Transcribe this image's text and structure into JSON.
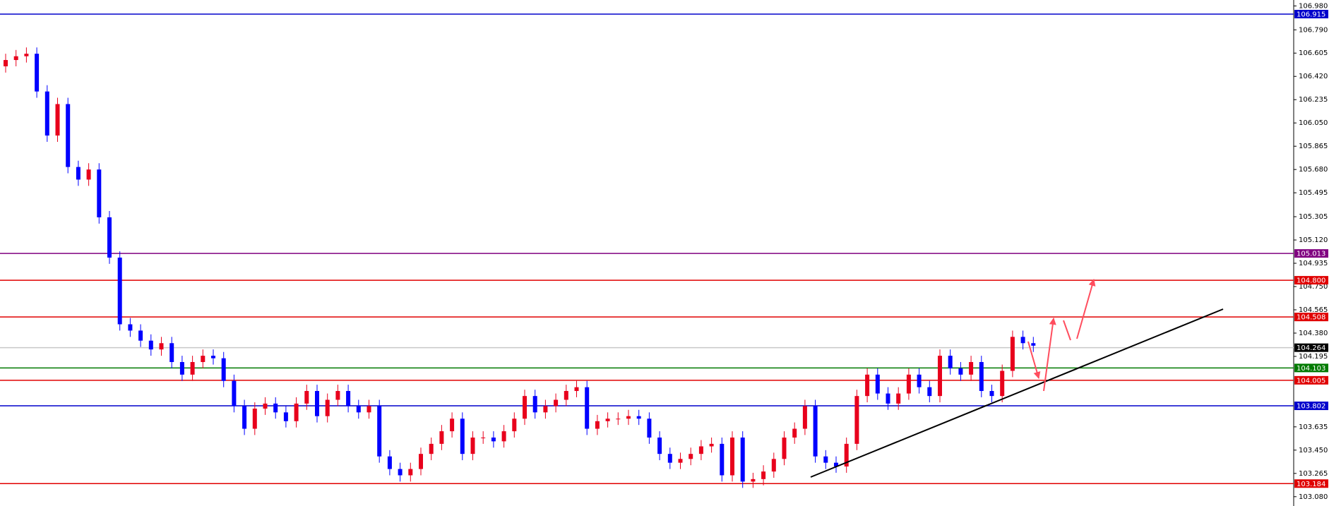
{
  "chart_data": {
    "type": "candlestick",
    "up_color": "#e8001c",
    "down_color": "#0000ff",
    "ylim": [
      103.006,
      107.027
    ],
    "yticks": [
      {
        "value": 106.98,
        "label": "106.980"
      },
      {
        "value": 106.79,
        "label": "106.790"
      },
      106.605,
      {
        "value": 106.42,
        "label": "106.420"
      },
      106.235,
      {
        "value": 106.05,
        "label": "106.050"
      },
      105.865,
      {
        "value": 105.68,
        "label": "105.680"
      },
      105.495,
      105.305,
      {
        "value": 105.12,
        "label": "105.120"
      },
      104.935,
      {
        "value": 104.75,
        "label": "104.750"
      },
      104.565,
      {
        "value": 104.38,
        "label": "104.380"
      },
      104.195,
      103.635,
      {
        "value": 103.45,
        "label": "103.450"
      },
      103.265,
      {
        "value": 103.08,
        "label": "103.080"
      }
    ],
    "levels": [
      {
        "value": 106.915,
        "color": "#0000cc"
      },
      {
        "value": 105.013,
        "color": "#800080"
      },
      {
        "value": 104.8,
        "label": "104.800",
        "color": "#e00000"
      },
      {
        "value": 104.508,
        "color": "#e00000"
      },
      {
        "value": 104.264,
        "color": "#c8c8c8",
        "tag_color": "#000000"
      },
      {
        "value": 104.103,
        "color": "#007a00"
      },
      {
        "value": 104.005,
        "color": "#e00000"
      },
      {
        "value": 103.802,
        "color": "#0000cc"
      },
      {
        "value": 103.184,
        "color": "#e00000"
      }
    ],
    "open": [
      106.5,
      106.55,
      106.58,
      106.6,
      106.3,
      105.95,
      106.2,
      105.7,
      105.6,
      105.68,
      105.3,
      104.98,
      104.45,
      104.4,
      104.32,
      104.25,
      104.3,
      104.15,
      104.05,
      104.15,
      104.2,
      104.18,
      104.0,
      103.8,
      103.62,
      103.78,
      103.82,
      103.75,
      103.68,
      103.82,
      103.92,
      103.72,
      103.85,
      103.92,
      103.8,
      103.75,
      103.8,
      103.4,
      103.3,
      103.25,
      103.3,
      103.42,
      103.5,
      103.6,
      103.7,
      103.42,
      103.55,
      103.55,
      103.52,
      103.6,
      103.7,
      103.88,
      103.75,
      103.8,
      103.85,
      103.92,
      103.95,
      103.62,
      103.68,
      103.7,
      103.7,
      103.72,
      103.7,
      103.55,
      103.42,
      103.35,
      103.38,
      103.42,
      103.48,
      103.5,
      103.25,
      103.55,
      103.2,
      103.22,
      103.28,
      103.38,
      103.55,
      103.62,
      103.8,
      103.4,
      103.35,
      103.32,
      103.5,
      103.88,
      104.05,
      103.9,
      103.82,
      103.9,
      104.05,
      103.95,
      103.88,
      104.2,
      104.1,
      104.05,
      104.15,
      103.92,
      103.88,
      104.08,
      104.35,
      104.3
    ],
    "high": [
      106.6,
      106.63,
      106.65,
      106.65,
      106.35,
      106.25,
      106.25,
      105.75,
      105.73,
      105.73,
      105.35,
      105.03,
      104.5,
      104.45,
      104.37,
      104.35,
      104.35,
      104.2,
      104.2,
      104.25,
      104.25,
      104.23,
      104.05,
      103.85,
      103.83,
      103.87,
      103.87,
      103.8,
      103.87,
      103.97,
      103.97,
      103.9,
      103.97,
      103.97,
      103.85,
      103.85,
      103.85,
      103.45,
      103.35,
      103.35,
      103.47,
      103.55,
      103.65,
      103.75,
      103.75,
      103.6,
      103.6,
      103.6,
      103.65,
      103.75,
      103.93,
      103.93,
      103.85,
      103.9,
      103.97,
      104.0,
      104.0,
      103.73,
      103.75,
      103.75,
      103.77,
      103.77,
      103.75,
      103.6,
      103.47,
      103.43,
      103.47,
      103.53,
      103.55,
      103.55,
      103.6,
      103.6,
      103.27,
      103.33,
      103.43,
      103.6,
      103.67,
      103.85,
      103.85,
      103.45,
      103.4,
      103.55,
      103.93,
      104.1,
      104.1,
      103.95,
      103.95,
      104.1,
      104.1,
      104.0,
      104.25,
      104.25,
      104.15,
      104.2,
      104.2,
      103.97,
      104.13,
      104.4,
      104.4,
      104.35
    ],
    "low": [
      106.45,
      106.5,
      106.53,
      106.25,
      105.9,
      105.9,
      105.65,
      105.55,
      105.55,
      105.25,
      104.93,
      104.4,
      104.35,
      104.27,
      104.2,
      104.2,
      104.1,
      104.0,
      104.0,
      104.1,
      104.13,
      103.95,
      103.75,
      103.57,
      103.57,
      103.73,
      103.7,
      103.63,
      103.63,
      103.77,
      103.67,
      103.67,
      103.8,
      103.75,
      103.7,
      103.7,
      103.35,
      103.25,
      103.2,
      103.2,
      103.25,
      103.37,
      103.45,
      103.55,
      103.37,
      103.37,
      103.5,
      103.47,
      103.47,
      103.55,
      103.65,
      103.7,
      103.7,
      103.75,
      103.8,
      103.87,
      103.57,
      103.57,
      103.63,
      103.65,
      103.65,
      103.65,
      103.5,
      103.37,
      103.3,
      103.3,
      103.33,
      103.37,
      103.43,
      103.2,
      103.2,
      103.15,
      103.15,
      103.17,
      103.23,
      103.33,
      103.5,
      103.57,
      103.35,
      103.3,
      103.27,
      103.27,
      103.45,
      103.83,
      103.85,
      103.77,
      103.77,
      103.85,
      103.9,
      103.83,
      103.83,
      104.05,
      104.0,
      104.0,
      103.87,
      103.83,
      103.83,
      104.03,
      104.25,
      104.23
    ],
    "close": [
      106.55,
      106.58,
      106.6,
      106.3,
      105.95,
      106.2,
      105.7,
      105.6,
      105.68,
      105.3,
      104.98,
      104.45,
      104.4,
      104.32,
      104.25,
      104.3,
      104.15,
      104.05,
      104.15,
      104.2,
      104.18,
      104.0,
      103.8,
      103.62,
      103.78,
      103.82,
      103.75,
      103.68,
      103.82,
      103.92,
      103.72,
      103.85,
      103.92,
      103.8,
      103.75,
      103.8,
      103.4,
      103.3,
      103.25,
      103.3,
      103.42,
      103.5,
      103.6,
      103.7,
      103.42,
      103.55,
      103.55,
      103.52,
      103.6,
      103.7,
      103.88,
      103.75,
      103.8,
      103.85,
      103.92,
      103.95,
      103.62,
      103.68,
      103.7,
      103.7,
      103.72,
      103.7,
      103.55,
      103.42,
      103.35,
      103.38,
      103.42,
      103.48,
      103.5,
      103.25,
      103.55,
      103.2,
      103.22,
      103.28,
      103.38,
      103.55,
      103.62,
      103.8,
      103.4,
      103.35,
      103.32,
      103.5,
      103.88,
      104.05,
      103.9,
      103.82,
      103.9,
      104.05,
      103.95,
      103.88,
      104.2,
      104.1,
      104.05,
      104.15,
      103.92,
      103.88,
      104.08,
      104.35,
      104.3,
      104.28
    ]
  }
}
